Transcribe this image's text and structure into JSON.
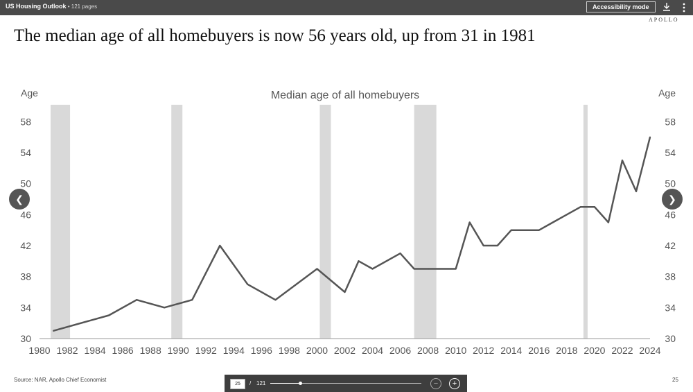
{
  "topbar": {
    "doc_title": "US Housing Outlook",
    "doc_pages": " • 121 pages",
    "accessibility_label": "Accessibility mode",
    "download_icon": "download-icon",
    "more_icon": "more-vertical-icon"
  },
  "brand": "APOLLO",
  "headline": "The median age of all homebuyers is now 56 years old, up from 31 in 1981",
  "chart_data": {
    "type": "line",
    "title": "Median age of all homebuyers",
    "ylabel_left": "Age",
    "ylabel_right": "Age",
    "ylim": [
      30,
      60
    ],
    "yticks": [
      30,
      34,
      38,
      42,
      46,
      50,
      54,
      58
    ],
    "xlim": [
      1980,
      2024
    ],
    "xticks": [
      1980,
      1982,
      1984,
      1986,
      1988,
      1990,
      1992,
      1994,
      1996,
      1998,
      2000,
      2002,
      2004,
      2006,
      2008,
      2010,
      2012,
      2014,
      2016,
      2018,
      2020,
      2022,
      2024
    ],
    "line_color": "#555555",
    "recession_color": "#d9d9d9",
    "recessions": [
      [
        1980.8,
        1982.2
      ],
      [
        1989.5,
        1990.3
      ],
      [
        2000.2,
        2001.0
      ],
      [
        2007.0,
        2008.6
      ],
      [
        2019.2,
        2019.5
      ]
    ],
    "series": [
      {
        "x": [
          1981,
          1985,
          1987,
          1989,
          1991,
          1993,
          1995,
          1997,
          2000,
          2002,
          2003,
          2004,
          2006,
          2007,
          2008,
          2009,
          2010,
          2011,
          2012,
          2013,
          2014,
          2015,
          2016,
          2017,
          2018,
          2019,
          2020,
          2021,
          2022,
          2023,
          2024
        ],
        "y": [
          31,
          33,
          35,
          34,
          35,
          42,
          37,
          35,
          39,
          36,
          40,
          39,
          41,
          39,
          39,
          39,
          39,
          45,
          42,
          42,
          44,
          44,
          44,
          45,
          46,
          47,
          47,
          45,
          53,
          49,
          56
        ]
      }
    ]
  },
  "nav": {
    "prev_glyph": "❮",
    "next_glyph": "❯"
  },
  "footer": {
    "source": "Source: NAR, Apollo Chief Economist",
    "page_num": "25"
  },
  "pager": {
    "current": "25",
    "sep": "/",
    "total": "121",
    "progress": 0.198,
    "zoom_out": "−",
    "zoom_in": "+"
  }
}
